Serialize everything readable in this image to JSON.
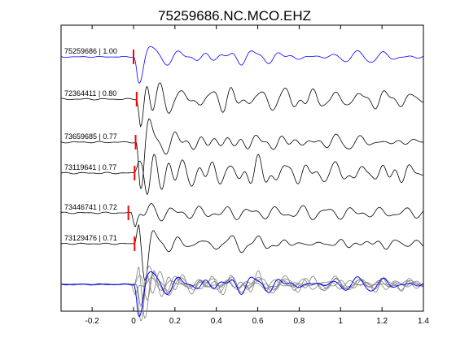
{
  "chart_data": {
    "type": "line",
    "title": "75259686.NC.MCO.EHZ",
    "xlabel": "",
    "ylabel": "",
    "xlim": [
      -0.35,
      1.4
    ],
    "xticks": [
      -0.2,
      0,
      0.2,
      0.4,
      0.6,
      0.8,
      1,
      1.2,
      1.4
    ],
    "xtick_labels": [
      "-0.2",
      "0",
      "0.2",
      "0.4",
      "0.6",
      "0.8",
      "1",
      "1.2",
      "1.4"
    ],
    "grid": false,
    "legend": "none",
    "colors": {
      "reference": "#0000ff",
      "trace": "#000000",
      "overlay": "#808080",
      "pick": "#ff0000",
      "axes": "#000000"
    },
    "traces": [
      {
        "label": "75259686 | 1.00",
        "pick_time": 0.0,
        "color": "reference",
        "seed": 11,
        "lag": 0.0
      },
      {
        "label": "72364411 | 0.80",
        "pick_time": 0.015,
        "color": "trace",
        "seed": 23,
        "lag": 0.012
      },
      {
        "label": "73659685 | 0.77",
        "pick_time": 0.01,
        "color": "trace",
        "seed": 37,
        "lag": 0.008
      },
      {
        "label": "73119641 | 0.77",
        "pick_time": 0.005,
        "color": "trace",
        "seed": 41,
        "lag": 0.004
      },
      {
        "label": "73446741 | 0.72",
        "pick_time": -0.025,
        "color": "trace",
        "seed": 53,
        "lag": -0.01
      },
      {
        "label": "73129476 | 0.71",
        "pick_time": 0.005,
        "color": "trace",
        "seed": 67,
        "lag": 0.006
      }
    ],
    "stack_row": true
  }
}
